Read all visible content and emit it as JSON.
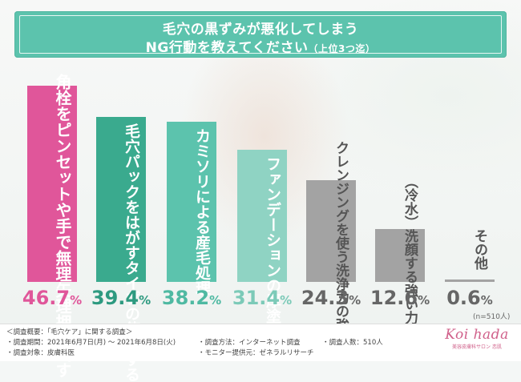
{
  "title": {
    "line1": "毛穴の黒ずみが悪化してしまう",
    "line2": "NG行動を教えてください",
    "line2_note": "（上位3つ迄）"
  },
  "chart_data": {
    "type": "bar",
    "categories": [
      "角栓をピンセットや手で無理矢理押し出す",
      "毛穴パックをはがすタイプの使用する",
      "カミソリによる産毛処理",
      "ファンデーションの厚塗り",
      "クレンジングを使う洗浄力の強い",
      "（冷水）洗顔する強い力で",
      "その他"
    ],
    "values": [
      46.7,
      39.4,
      38.2,
      31.4,
      24.3,
      12.6,
      0.6
    ],
    "value_labels": [
      "46.7",
      "39.4",
      "38.2",
      "31.4",
      "24.3",
      "12.6",
      "0.6"
    ],
    "unit": "%",
    "colors": [
      "#e0569a",
      "#3aaa8e",
      "#5cc3ad",
      "#8fd3c3",
      "#a3a3a3",
      "#a3a3a3",
      "#a3a3a3"
    ],
    "pct_colors": [
      "#e0569a",
      "#2e9a80",
      "#4fb9a2",
      "#7ccab8",
      "#666666",
      "#666666",
      "#666666"
    ],
    "sample_note": "(n=510人)",
    "ylim": [
      0,
      50
    ]
  },
  "footer": {
    "survey_overview": "＜調査概要：「毛穴ケア」に関する調査＞",
    "period": "・調査期間：2021年6月7日(月) 〜 2021年6月8日(火)",
    "target": "・調査対象：皮膚科医",
    "method": "・調査方法：インターネット調査",
    "provider": "・モニター提供元：ゼネラルリサーチ",
    "count": "・調査人数：510人"
  },
  "logo": {
    "name": "Koi hada",
    "sub": "美容皮膚科サロン 恋肌"
  }
}
